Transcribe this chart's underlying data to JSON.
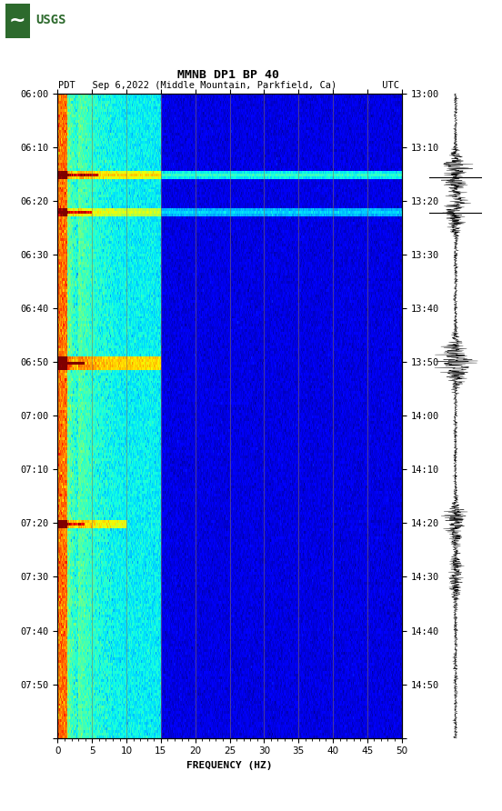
{
  "title_line1": "MMNB DP1 BP 40",
  "title_line2": "PDT   Sep 6,2022 (Middle Mountain, Parkfield, Ca)        UTC",
  "xlabel": "FREQUENCY (HZ)",
  "freq_min": 0,
  "freq_max": 50,
  "freq_ticks": [
    0,
    5,
    10,
    15,
    20,
    25,
    30,
    35,
    40,
    45,
    50
  ],
  "time_labels_left": [
    "06:00",
    "06:10",
    "06:20",
    "06:30",
    "06:40",
    "06:50",
    "07:00",
    "07:10",
    "07:20",
    "07:30",
    "07:40",
    "07:50",
    ""
  ],
  "time_labels_right": [
    "13:00",
    "13:10",
    "13:20",
    "13:30",
    "13:40",
    "13:50",
    "14:00",
    "14:10",
    "14:20",
    "14:30",
    "14:40",
    "14:50",
    ""
  ],
  "n_time_steps": 240,
  "n_freq_bins": 400,
  "colormap": "jet",
  "vertical_grid_color": "#8B7355",
  "vertical_grid_freqs": [
    5,
    10,
    15,
    20,
    25,
    30,
    35,
    40,
    45
  ]
}
